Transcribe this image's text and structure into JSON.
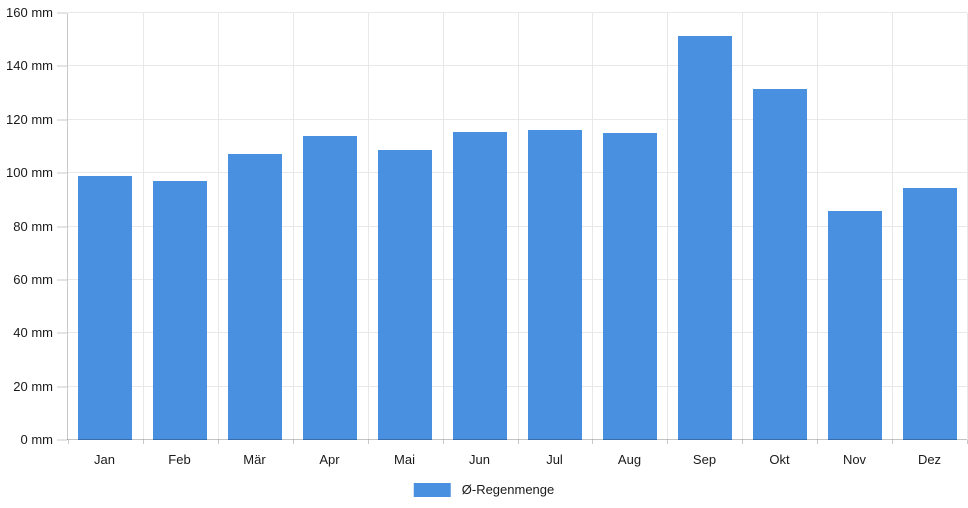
{
  "chart_data": {
    "type": "bar",
    "title": "",
    "xlabel": "",
    "ylabel": "",
    "categories": [
      "Jan",
      "Feb",
      "Mär",
      "Apr",
      "Mai",
      "Jun",
      "Jul",
      "Aug",
      "Sep",
      "Okt",
      "Nov",
      "Dez"
    ],
    "series": [
      {
        "name": "Ø-Regenmenge",
        "values": [
          99,
          97,
          107,
          114,
          108.5,
          115.5,
          116,
          115,
          151.5,
          131.5,
          86,
          94.5
        ]
      }
    ],
    "unit": "mm",
    "ylim": [
      0,
      160
    ],
    "y_tick_step": 20,
    "y_tick_labels": [
      "0 mm",
      "20 mm",
      "40 mm",
      "60 mm",
      "80 mm",
      "100 mm",
      "120 mm",
      "140 mm",
      "160 mm"
    ],
    "grid": true,
    "legend_position": "bottom"
  },
  "legend": {
    "label": "Ø-Regenmenge"
  },
  "colors": {
    "bar": "#4a90e0",
    "grid": "#e8e8e8",
    "axis": "#c9c9c9",
    "text": "#1a1a1a"
  }
}
